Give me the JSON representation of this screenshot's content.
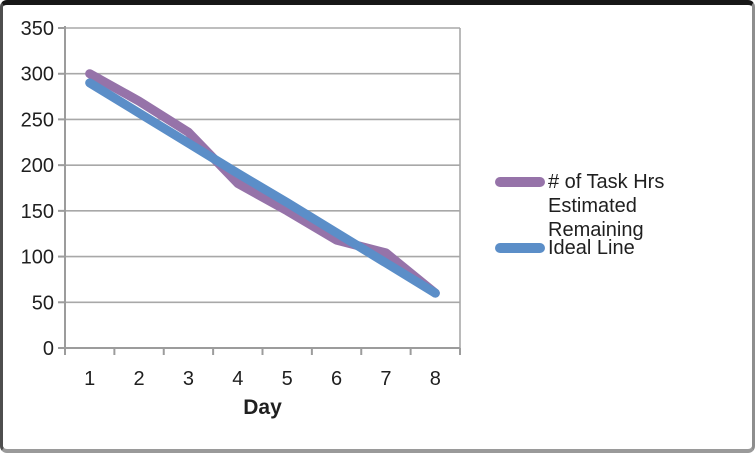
{
  "chart_data": {
    "type": "line",
    "title": "",
    "xlabel": "Day",
    "ylabel": "",
    "categories": [
      "1",
      "2",
      "3",
      "4",
      "5",
      "6",
      "7",
      "8"
    ],
    "series": [
      {
        "name": "# of Task Hrs Estimated Remaining",
        "color": "#9673A9",
        "values": [
          300,
          270,
          236,
          180,
          150,
          118,
          104,
          60
        ]
      },
      {
        "name": "Ideal Line",
        "color": "#5B8EC8",
        "values": [
          290,
          257,
          224,
          191,
          159,
          126,
          93,
          60
        ]
      }
    ],
    "ylim": [
      0,
      350
    ],
    "y_ticks": [
      0,
      50,
      100,
      150,
      200,
      250,
      300,
      350
    ],
    "grid": true,
    "legend_position": "right",
    "colors": {
      "grid": "#a8a8a8",
      "axis": "#9c9c9c",
      "text": "#1f1f1f"
    }
  }
}
